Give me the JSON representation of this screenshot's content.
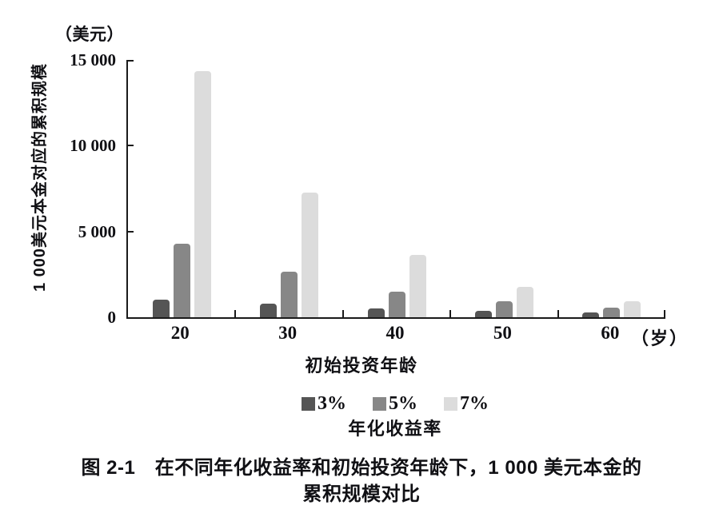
{
  "figure": {
    "unit_label": "（美元）",
    "x_suffix": "（岁）",
    "caption_line1": "图 2-1　在不同年化收益率和初始投资年龄下，1 000 美元本金的",
    "caption_line2": "累积规模对比"
  },
  "chart_data": {
    "type": "bar",
    "title": "图 2-1　在不同年化收益率和初始投资年龄下，1 000 美元本金的累积规模对比",
    "xlabel": "初始投资年龄",
    "ylabel": "1 000美元本金对应的累积规模",
    "y_unit_label": "（美元）",
    "x_unit_label": "（岁）",
    "legend_title": "年化收益率",
    "legend_position": "bottom",
    "grid": false,
    "ylim": [
      0,
      15000
    ],
    "yticks": [
      {
        "value": 0,
        "label": "0"
      },
      {
        "value": 5000,
        "label": "5 000"
      },
      {
        "value": 10000,
        "label": "10 000"
      },
      {
        "value": 15000,
        "label": "15 000"
      }
    ],
    "categories": [
      "20",
      "30",
      "40",
      "50",
      "60"
    ],
    "series": [
      {
        "name": "3%",
        "color": "#555555",
        "values": [
          1050,
          800,
          520,
          380,
          280
        ]
      },
      {
        "name": "5%",
        "color": "#878787",
        "values": [
          4300,
          2650,
          1500,
          940,
          560
        ]
      },
      {
        "name": "7%",
        "color": "#dcdcdc",
        "values": [
          14350,
          7250,
          3650,
          1750,
          940
        ]
      }
    ]
  }
}
